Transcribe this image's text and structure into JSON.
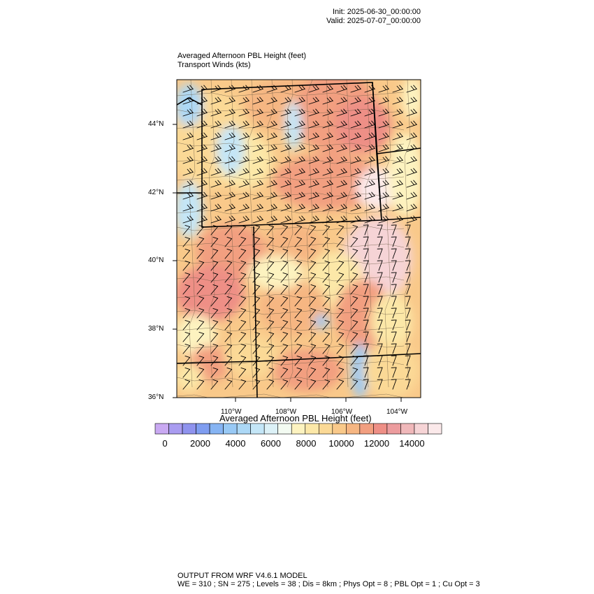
{
  "header": {
    "init": "Init: 2025-06-30_00:00:00",
    "valid": "Valid: 2025-07-07_00:00:00"
  },
  "titles": {
    "left1": "Averaged Afternoon PBL Height   (feet)",
    "left2": "Transport Winds   (kts)"
  },
  "axes": {
    "lat_labels": [
      "44°N",
      "42°N",
      "40°N",
      "38°N",
      "36°N"
    ],
    "lon_labels": [
      "110°W",
      "108°W",
      "106°W",
      "104°W"
    ]
  },
  "colorbar": {
    "title": "Averaged Afternoon PBL Height  (feet)",
    "tick_labels": [
      "0",
      "2000",
      "4000",
      "6000",
      "8000",
      "10000",
      "12000",
      "14000"
    ],
    "colors": [
      "#c9a9f2",
      "#a99cf0",
      "#8f93ee",
      "#7f9df0",
      "#86b4f3",
      "#98c9f5",
      "#acd8f6",
      "#c4e6f7",
      "#dcf1f7",
      "#f3fbf2",
      "#fdf3c0",
      "#fce8a8",
      "#fbd996",
      "#f9c98a",
      "#f6b682",
      "#f29f80",
      "#ee8f86",
      "#ec9c9e",
      "#f0b8ba",
      "#f6d4d6",
      "#fbe9ea"
    ]
  },
  "footer": {
    "line1": "OUTPUT FROM WRF V4.6.1 MODEL",
    "line2": "WE = 310 ; SN = 275 ; Levels = 38 ; Dis = 8km ; Phys Opt = 8 ; PBL Opt = 1 ; Cu Opt = 3"
  }
}
